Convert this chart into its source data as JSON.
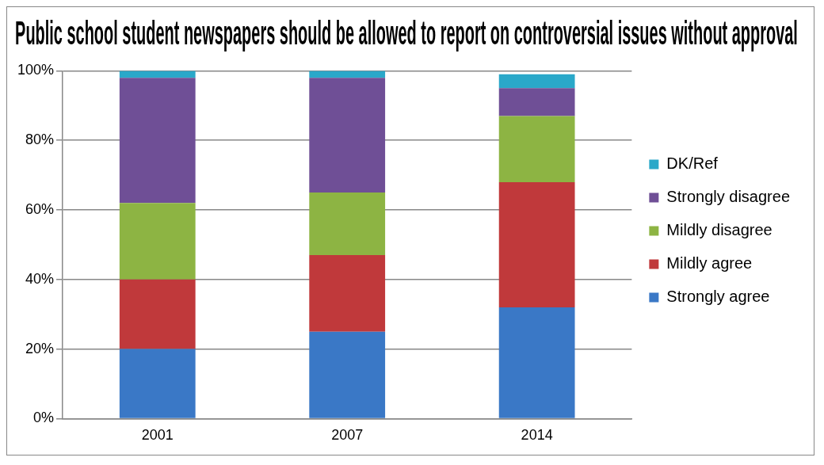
{
  "chart_data": {
    "type": "bar",
    "title": "Public school student newspapers should be allowed to report on controversial issues without approval",
    "categories": [
      "2001",
      "2007",
      "2014"
    ],
    "stacked": true,
    "series": [
      {
        "name": "Strongly agree",
        "color": "#3a78c6",
        "values": [
          20,
          25,
          32
        ]
      },
      {
        "name": "Mildly agree",
        "color": "#c0393b",
        "values": [
          20,
          22,
          36
        ]
      },
      {
        "name": "Mildly disagree",
        "color": "#8db443",
        "values": [
          22,
          18,
          19
        ]
      },
      {
        "name": "Strongly disagree",
        "color": "#6f4f96",
        "values": [
          36,
          33,
          8
        ]
      },
      {
        "name": "DK/Ref",
        "color": "#2aa8c9",
        "values": [
          2,
          2,
          4
        ]
      }
    ],
    "ylim": [
      0,
      100
    ],
    "yticks": [
      {
        "value": 0,
        "label": "0%"
      },
      {
        "value": 20,
        "label": "20%"
      },
      {
        "value": 40,
        "label": "40%"
      },
      {
        "value": 60,
        "label": "60%"
      },
      {
        "value": 80,
        "label": "80%"
      },
      {
        "value": 100,
        "label": "100%"
      }
    ],
    "grid": "y",
    "legend": "right"
  }
}
